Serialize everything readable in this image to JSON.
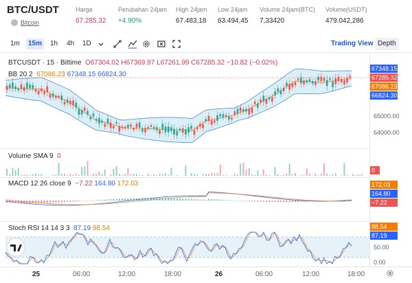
{
  "header": {
    "pair": "BTC/USDT",
    "coin": "Bitcoin",
    "stats": [
      {
        "label": "Harga",
        "value": "67.285,32",
        "tone": "red"
      },
      {
        "label": "Perubahan 24jam",
        "value": "+4.90%",
        "tone": "green"
      },
      {
        "label": "High 24jam",
        "value": "67.483,18",
        "tone": ""
      },
      {
        "label": "Low 24jam",
        "value": "63.494,45",
        "tone": ""
      },
      {
        "label": "Volume 24jam(BTC)",
        "value": "7,33420",
        "tone": ""
      },
      {
        "label": "Volume(USDT)",
        "value": "479.042,286",
        "tone": ""
      }
    ]
  },
  "toolbar": {
    "timeframes": [
      "1m",
      "15m",
      "1h",
      "4h",
      "1D"
    ],
    "active_timeframe": "15m",
    "views": [
      "Trading View",
      "Depth"
    ],
    "active_view": "Trading View"
  },
  "main_legend": {
    "symbol": "BTCUSDT · 15 · Bittime",
    "o": "O67304.02",
    "h": "H67369.97",
    "l": "L67261.99",
    "c": "C67285.32",
    "change": "−10.82 (−0.02%)",
    "bb_label": "BB 20 2",
    "bb_mid": "67086.23",
    "bb_upper": "67348.15",
    "bb_lower": "66824.30"
  },
  "price_badges": [
    {
      "value": "67348.15",
      "color": "#2962ff"
    },
    {
      "value": "67285.32",
      "color": "#ef5350"
    },
    {
      "value": "67086.23",
      "color": "#f57c00"
    },
    {
      "value": "66824.30",
      "color": "#2962ff"
    }
  ],
  "price_axis": [
    "65000.00",
    "64000.00"
  ],
  "volume": {
    "label": "Volume SMA 9",
    "value": "0",
    "badge": "0"
  },
  "macd": {
    "label": "MACD 12 26 close 9",
    "hist": "−7.22",
    "macd": "164.80",
    "signal": "172.03",
    "badges": [
      "172.03",
      "164.80",
      "−7.22"
    ]
  },
  "stoch": {
    "label": "Stoch RSI 14 14 3 3",
    "k": "87.19",
    "d": "88.54",
    "badges": [
      "88.54",
      "87.19"
    ],
    "axis": [
      "50.00",
      "0.00"
    ]
  },
  "time_axis": [
    "25",
    "06:00",
    "12:00",
    "18:00",
    "26",
    "06:00",
    "12:00",
    "18:00"
  ],
  "colors": {
    "up": "#26a69a",
    "down": "#ef5350",
    "band": "#d3ebf5",
    "accent": "#2962ff"
  }
}
